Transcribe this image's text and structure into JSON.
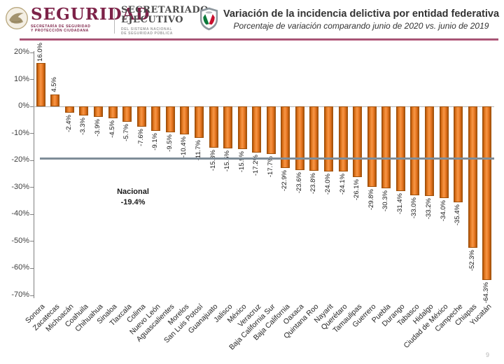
{
  "header": {
    "brand": {
      "name": "SEGURIDAD",
      "sub1": "SECRETARÍA DE SEGURIDAD",
      "sub2": "Y PROTECCIÓN CIUDADANA"
    },
    "secretariado": {
      "name1": "SECRETARIADO",
      "name2": "EJECUTIVO",
      "sub1": "DEL SISTEMA NACIONAL",
      "sub2": "DE SEGURIDAD PÚBLICA"
    },
    "title": "Variación de la incidencia delictiva por entidad federativa",
    "subtitle": "Porcentaje de variación comparando junio de 2020 vs. junio de 2019"
  },
  "chart_data": {
    "type": "bar",
    "title": "Variación de la incidencia delictiva por entidad federativa",
    "subtitle": "Porcentaje de variación comparando junio de 2020 vs. junio de 2019",
    "categories": [
      "Sonora",
      "Zacatecas",
      "Michoacán",
      "Coahuila",
      "Chihuahua",
      "Sinaloa",
      "Tlaxcala",
      "Colima",
      "Nuevo León",
      "Aguascalientes",
      "Morelos",
      "San Luis Potosí",
      "Guanajuato",
      "Jalisco",
      "México",
      "Veracruz",
      "Baja California Sur",
      "Baja California",
      "Oaxaca",
      "Quintana Roo",
      "Nayarit",
      "Querétaro",
      "Tamaulipas",
      "Guerrero",
      "Puebla",
      "Durango",
      "Tabasco",
      "Hidalgo",
      "Ciudad de México",
      "Campeche",
      "Chiapas",
      "Yucatán"
    ],
    "values": [
      16.0,
      4.5,
      -2.4,
      -3.3,
      -3.9,
      -4.5,
      -5.7,
      -7.6,
      -9.1,
      -9.5,
      -10.4,
      -11.7,
      -15.3,
      -15.5,
      -15.9,
      -17.2,
      -17.7,
      -22.9,
      -23.6,
      -23.8,
      -24.0,
      -24.1,
      -26.1,
      -29.8,
      -30.3,
      -31.4,
      -33.0,
      -33.2,
      -34.0,
      -35.4,
      -52.3,
      -64.3
    ],
    "value_labels": [
      "16.0%",
      "4.5%",
      "-2.4%",
      "-3.3%",
      "-3.9%",
      "-4.5%",
      "-5.7%",
      "-7.6%",
      "-9.1%",
      "-9.5%",
      "-10.4%",
      "-11.7%",
      "-15.3%",
      "-15.5%",
      "-15.9%",
      "-17.2%",
      "-17.7%",
      "-22.9%",
      "-23.6%",
      "-23.8%",
      "-24.0%",
      "-24.1%",
      "-26.1%",
      "-29.8%",
      "-30.3%",
      "-31.4%",
      "-33.0%",
      "-33.2%",
      "-34.0%",
      "-35.4%",
      "-52.3%",
      "-64.3%"
    ],
    "xlabel": "",
    "ylabel": "",
    "ylim": [
      -70,
      20
    ],
    "yticks": [
      {
        "label": "20%",
        "value": 20
      },
      {
        "label": "10%",
        "value": 10
      },
      {
        "label": "0%",
        "value": 0
      },
      {
        "label": "-10%",
        "value": -10
      },
      {
        "label": "-20%",
        "value": -20
      },
      {
        "label": "-30%",
        "value": -30
      },
      {
        "label": "-40%",
        "value": -40
      },
      {
        "label": "-50%",
        "value": -50
      },
      {
        "label": "-60%",
        "value": -60
      },
      {
        "label": "-70%",
        "value": -70
      }
    ],
    "grid": false,
    "legend": "none",
    "bar_color": "#e87722",
    "reference_line": {
      "label": "Nacional",
      "value_label": "-19.4%",
      "value": -19.4,
      "color": "#7f8d98"
    }
  },
  "colors": {
    "brand_maroon": "#7d2248",
    "divider_maroon": "#9e4265",
    "axis_gray": "#808080"
  },
  "footer": {
    "page_mark": "9"
  }
}
